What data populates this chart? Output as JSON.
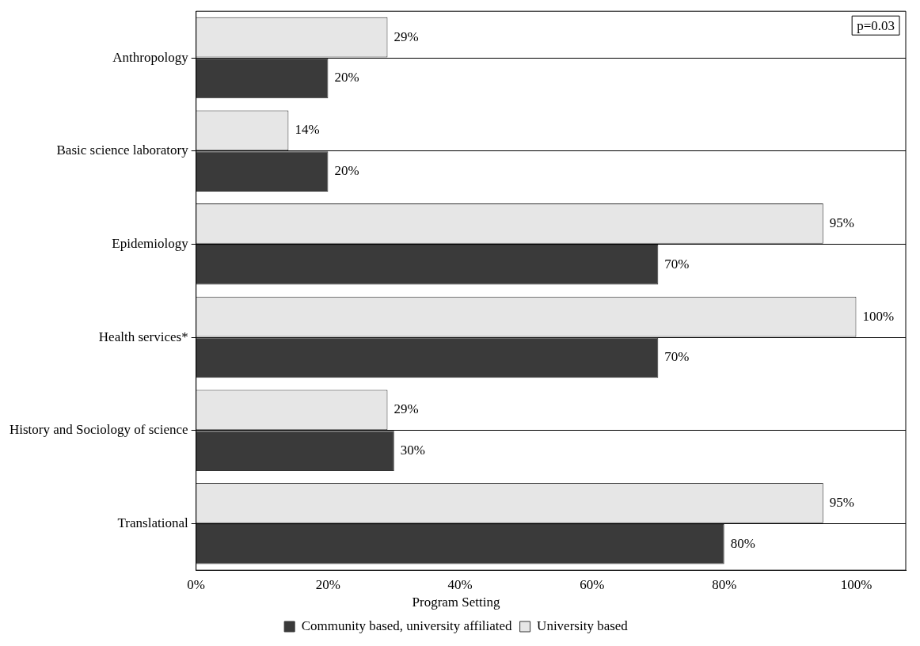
{
  "chart_data": {
    "type": "bar",
    "orientation": "horizontal",
    "categories": [
      "Anthropology",
      "Basic science laboratory",
      "Epidemiology",
      "Health services*",
      "History and Sociology of science",
      "Translational"
    ],
    "series": [
      {
        "name": "University based",
        "color": "#e6e6e6",
        "values": [
          29,
          14,
          95,
          100,
          29,
          95
        ],
        "value_labels": [
          "29%",
          "14%",
          "95%",
          "100%",
          "29%",
          "95%"
        ]
      },
      {
        "name": "Community based, university affiliated",
        "color": "#3a3a3a",
        "values": [
          20,
          20,
          70,
          70,
          30,
          80
        ],
        "value_labels": [
          "20%",
          "20%",
          "70%",
          "70%",
          "30%",
          "80%"
        ]
      }
    ],
    "xlim": [
      0,
      107.5
    ],
    "xticks": [
      {
        "value": 0,
        "label": "0%"
      },
      {
        "value": 20,
        "label": "20%"
      },
      {
        "value": 40,
        "label": "40%"
      },
      {
        "value": 60,
        "label": "60%"
      },
      {
        "value": 80,
        "label": "80%"
      },
      {
        "value": 100,
        "label": "100%"
      }
    ],
    "legend": "bottom",
    "legend_title": "Program Setting",
    "grid": "y",
    "annotations": [
      "p=0.03"
    ]
  }
}
